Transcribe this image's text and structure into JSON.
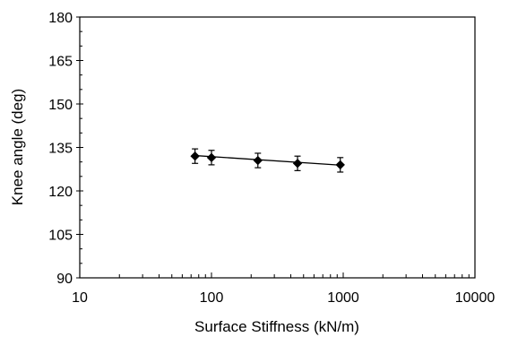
{
  "chart_data": {
    "type": "scatter",
    "title": "",
    "xlabel": "Surface Stiffness (kN/m)",
    "ylabel": "Knee angle (deg)",
    "xscale": "log",
    "xlim": [
      10,
      10000
    ],
    "ylim": [
      90,
      180
    ],
    "x_ticks": [
      10,
      100,
      1000,
      10000
    ],
    "x_tick_labels": [
      "10",
      "100",
      "1000",
      "10000"
    ],
    "y_ticks": [
      90,
      105,
      120,
      135,
      150,
      165,
      180
    ],
    "y_tick_labels": [
      "90",
      "105",
      "120",
      "135",
      "150",
      "165",
      "180"
    ],
    "grid": false,
    "legend": "none",
    "series": [
      {
        "marker": "diamond",
        "color": "#000000",
        "x": [
          75,
          100,
          225,
          450,
          950
        ],
        "y": [
          132,
          131.5,
          130.5,
          129.5,
          129
        ],
        "error": [
          2.5,
          2.5,
          2.5,
          2.5,
          2.5
        ]
      }
    ],
    "trendline": {
      "x": [
        75,
        950
      ],
      "y": [
        132.2,
        128.9
      ]
    }
  }
}
